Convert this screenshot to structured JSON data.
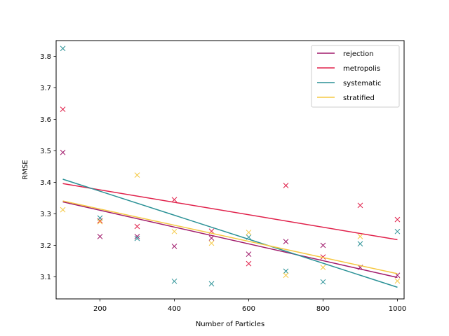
{
  "chart_data": {
    "type": "scatter",
    "title": "",
    "xlabel": "Number of Particles",
    "ylabel": "RMSE",
    "xlim": [
      82,
      1018
    ],
    "ylim": [
      3.03,
      3.85
    ],
    "xticks": [
      200,
      400,
      600,
      800,
      1000
    ],
    "yticks": [
      3.1,
      3.2,
      3.3,
      3.4,
      3.5,
      3.6,
      3.7,
      3.8
    ],
    "grid": false,
    "legend_position": "top-right",
    "series": [
      {
        "name": "rejection",
        "color": "#a01a6b",
        "x": [
          100,
          200,
          300,
          400,
          500,
          600,
          700,
          800,
          900,
          1000
        ],
        "y": [
          3.495,
          3.228,
          3.228,
          3.197,
          3.223,
          3.172,
          3.212,
          3.2,
          3.13,
          3.105
        ],
        "fit": [
          3.338,
          3.098
        ]
      },
      {
        "name": "metropolis",
        "color": "#e0204a",
        "x": [
          100,
          200,
          300,
          400,
          500,
          600,
          700,
          800,
          900,
          1000
        ],
        "y": [
          3.632,
          3.278,
          3.26,
          3.345,
          3.245,
          3.142,
          3.39,
          3.163,
          3.327,
          3.282
        ],
        "fit": [
          3.396,
          3.218
        ]
      },
      {
        "name": "systematic",
        "color": "#2a9196",
        "x": [
          100,
          200,
          300,
          400,
          500,
          600,
          700,
          800,
          900,
          1000
        ],
        "y": [
          3.825,
          3.287,
          3.222,
          3.086,
          3.078,
          3.226,
          3.118,
          3.084,
          3.205,
          3.244
        ],
        "fit": [
          3.41,
          3.067
        ]
      },
      {
        "name": "stratified",
        "color": "#f5c842",
        "x": [
          100,
          200,
          300,
          400,
          500,
          600,
          700,
          800,
          900,
          1000
        ],
        "y": [
          3.313,
          3.275,
          3.423,
          3.244,
          3.207,
          3.241,
          3.105,
          3.13,
          3.228,
          3.087
        ],
        "fit": [
          3.341,
          3.11
        ]
      }
    ]
  }
}
